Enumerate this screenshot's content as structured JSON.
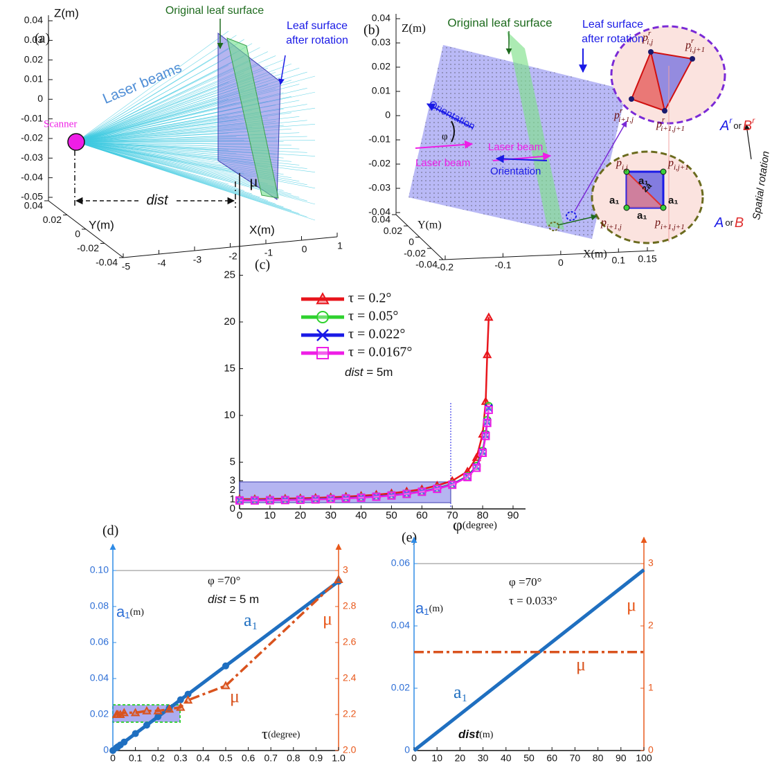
{
  "panel_a": {
    "label": "(a)",
    "original_surface": "Original leaf surface",
    "rotated_surface": [
      "Leaf surface",
      "after rotation"
    ],
    "scanner": "Scanner",
    "beams": "Laser beams",
    "distance": "dist",
    "z_axis": {
      "label": "Z(m)",
      "ticks": [
        0.04,
        0.03,
        0.02,
        0.01,
        0,
        -0.01,
        -0.02,
        -0.03,
        -0.04,
        -0.05
      ]
    },
    "y_axis": {
      "label": "Y(m)",
      "ticks": [
        0.04,
        0.02,
        0,
        -0.02,
        -0.04
      ]
    },
    "x_axis": {
      "label": "X(m)",
      "ticks": [
        -5,
        -4,
        -3,
        -2,
        -1,
        0,
        1
      ]
    }
  },
  "panel_b": {
    "label": "(b)",
    "original_surface": "Original leaf surface",
    "rotated_surface": [
      "Leaf surface",
      "after rotation"
    ],
    "orientation": [
      "Orientation",
      "Orientation"
    ],
    "phi": "φ",
    "laser_beam": [
      "Laser beam",
      "Laser beam"
    ],
    "rotated_points": [
      {
        "base": "p",
        "sup": "r",
        "sub": "i,j"
      },
      {
        "base": "p",
        "sup": "r",
        "sub": "i,j+1"
      },
      {
        "base": "p",
        "sup": "r",
        "sub": "i+1,j"
      },
      {
        "base": "p",
        "sup": "r",
        "sub": "i+1,j+1"
      }
    ],
    "points": [
      {
        "base": "p",
        "sub": "i,j"
      },
      {
        "base": "p",
        "sub": "i,j+1"
      },
      {
        "base": "p",
        "sub": "i+1,j"
      },
      {
        "base": "p",
        "sub": "i+1,j+1"
      }
    ],
    "edge_labels": [
      "a₁",
      "a₁",
      "a₁",
      "a₁"
    ],
    "diagonal_label": "2a",
    "rotated_set": {
      "first": "A",
      "first_sup": "r",
      "or": "or",
      "second": "B",
      "second_sup": "r"
    },
    "set": {
      "first": "A",
      "or": "or",
      "second": "B"
    },
    "rotation": "Spatial rotation",
    "z_axis": {
      "label": "Z(m)",
      "ticks": [
        0.04,
        0.03,
        0.02,
        0.01,
        0,
        -0.01,
        -0.02,
        -0.03,
        -0.04
      ]
    },
    "y_axis": {
      "label": "Y(m)",
      "ticks": [
        0.04,
        0.02,
        0,
        -0.02,
        -0.04
      ]
    },
    "x_axis": {
      "label": "X(m)",
      "ticks": [
        -0.2,
        -0.1,
        0,
        0.1,
        0.15
      ]
    }
  },
  "chart_data": [
    {
      "type": "line",
      "label": "(c)",
      "y_label": "μ",
      "x_label": "φ",
      "x_unit": "(degree)",
      "x": [
        0,
        5,
        10,
        15,
        20,
        25,
        30,
        35,
        40,
        45,
        50,
        55,
        60,
        65,
        70,
        75,
        78,
        80,
        81,
        81.5,
        82
      ],
      "series": [
        {
          "name": "τ = 0.2°",
          "color": "#e8141b",
          "marker": "triangle",
          "values": [
            1.05,
            1.05,
            1.07,
            1.1,
            1.13,
            1.18,
            1.24,
            1.31,
            1.4,
            1.52,
            1.67,
            1.87,
            2.1,
            2.5,
            3.0,
            4.0,
            5.5,
            8.0,
            11.5,
            16.5,
            20.5
          ]
        },
        {
          "name": "τ = 0.05°",
          "color": "#2ed12e",
          "marker": "circle",
          "values": [
            0.95,
            0.95,
            0.97,
            0.99,
            1.02,
            1.06,
            1.11,
            1.17,
            1.25,
            1.35,
            1.48,
            1.65,
            1.88,
            2.2,
            2.65,
            3.5,
            4.6,
            6.2,
            8.0,
            9.5,
            11.0
          ]
        },
        {
          "name": "τ = 0.022°",
          "color": "#1a1ae6",
          "marker": "cross",
          "values": [
            0.93,
            0.93,
            0.95,
            0.97,
            1.0,
            1.04,
            1.09,
            1.15,
            1.23,
            1.33,
            1.46,
            1.63,
            1.86,
            2.17,
            2.62,
            3.45,
            4.5,
            6.1,
            7.9,
            9.3,
            10.8
          ]
        },
        {
          "name": "τ = 0.0167°",
          "color": "#ee1ee6",
          "marker": "square",
          "values": [
            0.9,
            0.9,
            0.92,
            0.94,
            0.97,
            1.01,
            1.06,
            1.12,
            1.2,
            1.3,
            1.43,
            1.6,
            1.83,
            2.14,
            2.58,
            3.4,
            4.4,
            6.0,
            7.8,
            9.2,
            10.6
          ]
        }
      ],
      "annotation": {
        "italic": "dist",
        "text": " = 5m"
      },
      "xlim": [
        0,
        90
      ],
      "ylim": [
        0,
        25
      ],
      "xticks": [
        0,
        10,
        20,
        30,
        40,
        50,
        60,
        70,
        80,
        90
      ],
      "yticks": [
        0,
        1,
        2,
        3,
        5,
        10,
        15,
        20,
        25
      ]
    },
    {
      "type": "dual_line",
      "label": "(d)",
      "y_label": "a₁",
      "y_unit": "(m)",
      "y2_label": "μ",
      "x_label": "τ",
      "x_unit": "(degree)",
      "annotations": [
        "φ =70°",
        {
          "italic": "dist",
          "text": " = 5 m"
        }
      ],
      "x": [
        0,
        0.0167,
        0.022,
        0.033,
        0.05,
        0.1,
        0.15,
        0.2,
        0.25,
        0.3,
        0.333,
        0.5,
        1.0
      ],
      "series": [
        {
          "name": "a₁",
          "color": "#1f6fc0",
          "marker": "circle",
          "style": "solid",
          "values": [
            0,
            0.0016,
            0.0021,
            0.0031,
            0.0047,
            0.0094,
            0.0141,
            0.0188,
            0.0235,
            0.0282,
            0.0313,
            0.047,
            0.094
          ]
        },
        {
          "name": "μ",
          "color": "#d9531e",
          "marker": "triangle",
          "style": "dash-dot",
          "axis": "y2",
          "values": [
            null,
            2.2,
            2.2,
            2.2,
            2.21,
            2.21,
            2.22,
            2.22,
            2.23,
            2.24,
            2.28,
            2.36,
            2.95
          ]
        }
      ],
      "xlim": [
        0,
        1
      ],
      "ylim": [
        0,
        0.1
      ],
      "y2lim": [
        2,
        3
      ],
      "xticks": [
        0,
        0.1,
        0.2,
        0.3,
        0.4,
        0.5,
        0.6,
        0.7,
        0.8,
        0.9,
        {
          "value": 1,
          "label": "1.0"
        }
      ],
      "yticks": [
        0,
        0.02,
        0.04,
        0.06,
        0.08,
        {
          "value": 0.1,
          "label": "0.10"
        }
      ],
      "y2ticks": [
        {
          "value": 2,
          "label": "2.0"
        },
        2.2,
        2.4,
        2.6,
        2.8,
        3
      ]
    },
    {
      "type": "dual_line",
      "label": "(e)",
      "y_label": "a₁",
      "y_unit": "(m)",
      "y2_label": "μ",
      "x_label": "dist",
      "x_unit": "(m)",
      "annotations": [
        "φ =70°",
        "τ = 0.033°"
      ],
      "x": [
        0,
        10,
        20,
        30,
        40,
        50,
        60,
        70,
        80,
        90,
        100
      ],
      "series": [
        {
          "name": "a₁",
          "color": "#1f6fc0",
          "marker": "none",
          "style": "solid",
          "values": [
            0,
            0.0058,
            0.0116,
            0.0174,
            0.0232,
            0.029,
            0.0348,
            0.0406,
            0.0464,
            0.0522,
            0.058
          ]
        },
        {
          "name": "μ",
          "color": "#d9531e",
          "marker": "none",
          "style": "dash-dot",
          "axis": "y2",
          "values": [
            1.58,
            1.58,
            1.58,
            1.58,
            1.58,
            1.58,
            1.58,
            1.58,
            1.58,
            1.58,
            1.58
          ]
        }
      ],
      "xlim": [
        0,
        100
      ],
      "ylim": [
        0,
        0.06
      ],
      "y2lim": [
        0,
        3
      ],
      "xticks": [
        0,
        10,
        20,
        30,
        40,
        50,
        60,
        70,
        80,
        90,
        100
      ],
      "yticks": [
        0,
        0.02,
        0.04,
        0.06
      ],
      "y2ticks": [
        0,
        1,
        2,
        3
      ]
    }
  ]
}
